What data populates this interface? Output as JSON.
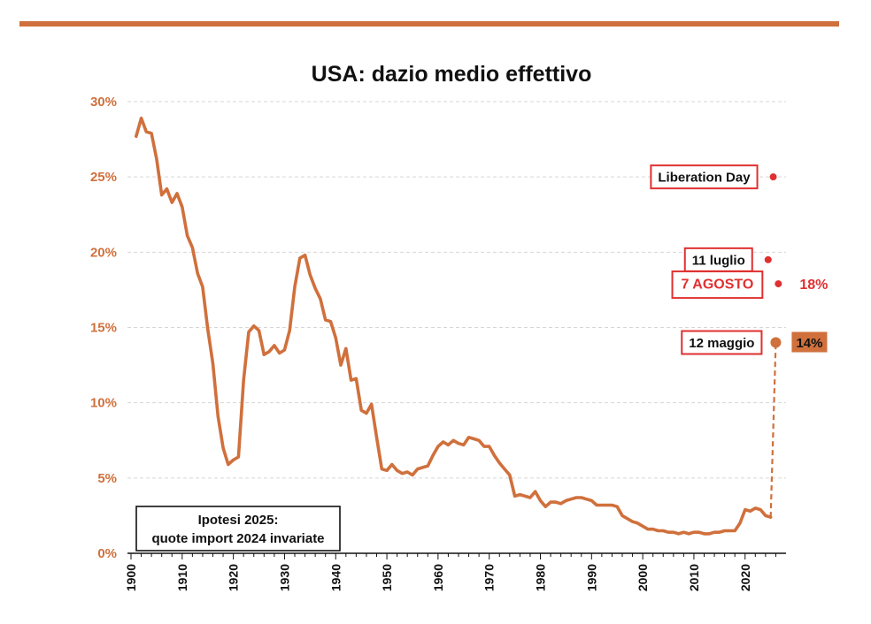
{
  "colors": {
    "line": "#d0703c",
    "red": "#e03030",
    "rule": "#d0703c",
    "grid": "#d6d6d6",
    "tick_y": "#d0703c"
  },
  "chart_data": {
    "type": "line",
    "title": "USA: dazio medio effettivo",
    "ylim": [
      0,
      30
    ],
    "xlim": [
      1900,
      2028
    ],
    "y_ticks": [
      0,
      5,
      10,
      15,
      20,
      25,
      30
    ],
    "y_tick_labels": [
      "0%",
      "5%",
      "10%",
      "15%",
      "20%",
      "25%",
      "30%"
    ],
    "x_ticks": [
      1900,
      1910,
      1920,
      1930,
      1940,
      1950,
      1960,
      1970,
      1980,
      1990,
      2000,
      2010,
      2020
    ],
    "x_tick_labels": [
      "1900",
      "1910",
      "1920",
      "1930",
      "1940",
      "1950",
      "1960",
      "1970",
      "1980",
      "1990",
      "2000",
      "2010",
      "2020"
    ],
    "grid": true,
    "series": [
      {
        "values": [
          [
            1901,
            27.7
          ],
          [
            1902,
            28.9
          ],
          [
            1903,
            28.0
          ],
          [
            1904,
            27.9
          ],
          [
            1905,
            26.2
          ],
          [
            1906,
            23.8
          ],
          [
            1907,
            24.2
          ],
          [
            1908,
            23.3
          ],
          [
            1909,
            23.9
          ],
          [
            1910,
            23.0
          ],
          [
            1911,
            21.1
          ],
          [
            1912,
            20.3
          ],
          [
            1913,
            18.6
          ],
          [
            1914,
            17.7
          ],
          [
            1915,
            14.9
          ],
          [
            1916,
            12.6
          ],
          [
            1917,
            9.1
          ],
          [
            1918,
            7.0
          ],
          [
            1919,
            5.9
          ],
          [
            1920,
            6.2
          ],
          [
            1921,
            6.4
          ],
          [
            1922,
            11.5
          ],
          [
            1923,
            14.7
          ],
          [
            1924,
            15.1
          ],
          [
            1925,
            14.8
          ],
          [
            1926,
            13.2
          ],
          [
            1927,
            13.4
          ],
          [
            1928,
            13.8
          ],
          [
            1929,
            13.3
          ],
          [
            1930,
            13.5
          ],
          [
            1931,
            14.8
          ],
          [
            1932,
            17.7
          ],
          [
            1933,
            19.6
          ],
          [
            1934,
            19.8
          ],
          [
            1935,
            18.5
          ],
          [
            1936,
            17.6
          ],
          [
            1937,
            16.9
          ],
          [
            1938,
            15.5
          ],
          [
            1939,
            15.4
          ],
          [
            1940,
            14.3
          ],
          [
            1941,
            12.5
          ],
          [
            1942,
            13.6
          ],
          [
            1943,
            11.5
          ],
          [
            1944,
            11.6
          ],
          [
            1945,
            9.5
          ],
          [
            1946,
            9.3
          ],
          [
            1947,
            9.9
          ],
          [
            1948,
            7.7
          ],
          [
            1949,
            5.6
          ],
          [
            1950,
            5.5
          ],
          [
            1951,
            5.9
          ],
          [
            1952,
            5.5
          ],
          [
            1953,
            5.3
          ],
          [
            1954,
            5.4
          ],
          [
            1955,
            5.2
          ],
          [
            1956,
            5.6
          ],
          [
            1957,
            5.7
          ],
          [
            1958,
            5.8
          ],
          [
            1959,
            6.5
          ],
          [
            1960,
            7.1
          ],
          [
            1961,
            7.4
          ],
          [
            1962,
            7.2
          ],
          [
            1963,
            7.5
          ],
          [
            1964,
            7.3
          ],
          [
            1965,
            7.2
          ],
          [
            1966,
            7.7
          ],
          [
            1967,
            7.6
          ],
          [
            1968,
            7.5
          ],
          [
            1969,
            7.1
          ],
          [
            1970,
            7.1
          ],
          [
            1971,
            6.5
          ],
          [
            1972,
            6.0
          ],
          [
            1973,
            5.6
          ],
          [
            1974,
            5.2
          ],
          [
            1975,
            3.8
          ],
          [
            1976,
            3.9
          ],
          [
            1977,
            3.8
          ],
          [
            1978,
            3.7
          ],
          [
            1979,
            4.1
          ],
          [
            1980,
            3.5
          ],
          [
            1981,
            3.1
          ],
          [
            1982,
            3.4
          ],
          [
            1983,
            3.4
          ],
          [
            1984,
            3.3
          ],
          [
            1985,
            3.5
          ],
          [
            1986,
            3.6
          ],
          [
            1987,
            3.7
          ],
          [
            1988,
            3.7
          ],
          [
            1989,
            3.6
          ],
          [
            1990,
            3.5
          ],
          [
            1991,
            3.2
          ],
          [
            1992,
            3.2
          ],
          [
            1993,
            3.2
          ],
          [
            1994,
            3.2
          ],
          [
            1995,
            3.1
          ],
          [
            1996,
            2.5
          ],
          [
            1997,
            2.3
          ],
          [
            1998,
            2.1
          ],
          [
            1999,
            2.0
          ],
          [
            2000,
            1.8
          ],
          [
            2001,
            1.6
          ],
          [
            2002,
            1.6
          ],
          [
            2003,
            1.5
          ],
          [
            2004,
            1.5
          ],
          [
            2005,
            1.4
          ],
          [
            2006,
            1.4
          ],
          [
            2007,
            1.3
          ],
          [
            2008,
            1.4
          ],
          [
            2009,
            1.3
          ],
          [
            2010,
            1.4
          ],
          [
            2011,
            1.4
          ],
          [
            2012,
            1.3
          ],
          [
            2013,
            1.3
          ],
          [
            2014,
            1.4
          ],
          [
            2015,
            1.4
          ],
          [
            2016,
            1.5
          ],
          [
            2017,
            1.5
          ],
          [
            2018,
            1.5
          ],
          [
            2019,
            2.0
          ],
          [
            2020,
            2.9
          ],
          [
            2021,
            2.8
          ],
          [
            2022,
            3.0
          ],
          [
            2023,
            2.9
          ],
          [
            2024,
            2.5
          ],
          [
            2025,
            2.4
          ]
        ]
      }
    ],
    "projection": {
      "from": [
        2025,
        2.4
      ],
      "to": [
        2026,
        14.0
      ]
    },
    "annotations": [
      {
        "label": "Liberation Day",
        "x": 2025.5,
        "y": 25.0,
        "style": "red-dot"
      },
      {
        "label": "11 luglio",
        "x": 2024.5,
        "y": 19.5,
        "style": "red-dot"
      },
      {
        "label": "7 AGOSTO",
        "x": 2026.5,
        "y": 17.9,
        "style": "red-dot-red-label",
        "value_label": "18%"
      },
      {
        "label": "12 maggio",
        "x": 2026.0,
        "y": 14.0,
        "style": "orange-dot",
        "value_label": "14%"
      }
    ],
    "note_lines": [
      "Ipotesi 2025:",
      "quote import 2024 invariate"
    ]
  }
}
